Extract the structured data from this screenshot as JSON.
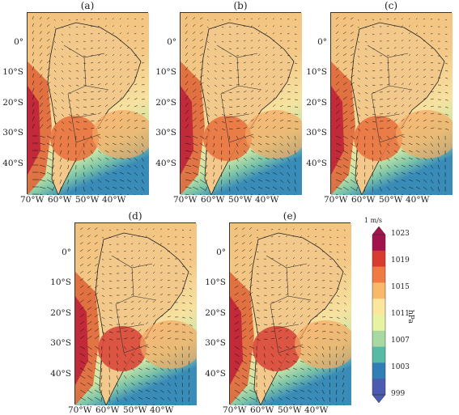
{
  "panels": [
    {
      "label": "(a)",
      "lat": [
        "0°",
        "10°S",
        "20°S",
        "30°S",
        "40°S"
      ],
      "lon": [
        "70°W",
        "60°W",
        "50°W",
        "40°W"
      ]
    },
    {
      "label": "(b)",
      "lat": [
        "0°",
        "10°S",
        "20°S",
        "30°S",
        "40°S"
      ],
      "lon": [
        "70°W",
        "60°W",
        "50°W",
        "40°W"
      ]
    },
    {
      "label": "(c)",
      "lat": [
        "0°",
        "10°S",
        "20°S",
        "30°S",
        "40°S"
      ],
      "lon": [
        "70°W",
        "60°W",
        "50°W",
        "40°W"
      ]
    },
    {
      "label": "(d)",
      "lat": [
        "0°",
        "10°S",
        "20°S",
        "30°S",
        "40°S"
      ],
      "lon": [
        "70°W",
        "60°W",
        "50°W",
        "40°W"
      ]
    },
    {
      "label": "(e)",
      "lat": [
        "0°",
        "10°S",
        "20°S",
        "30°S",
        "40°S"
      ],
      "lon": [
        "70°W",
        "60°W",
        "50°W",
        "40°W"
      ]
    }
  ],
  "colorbar": {
    "ticks": [
      "1023",
      "1019",
      "1015",
      "1011",
      "1007",
      "1003",
      "999"
    ],
    "unit": "hPa",
    "vector_ref": "1 m/s",
    "colors": [
      "#a0134b",
      "#d73c2f",
      "#ef7a43",
      "#f8b96a",
      "#fbe69d",
      "#e8f2a3",
      "#a9d9a3",
      "#58b9a5",
      "#2f7fb6",
      "#4b5cb0"
    ]
  }
}
